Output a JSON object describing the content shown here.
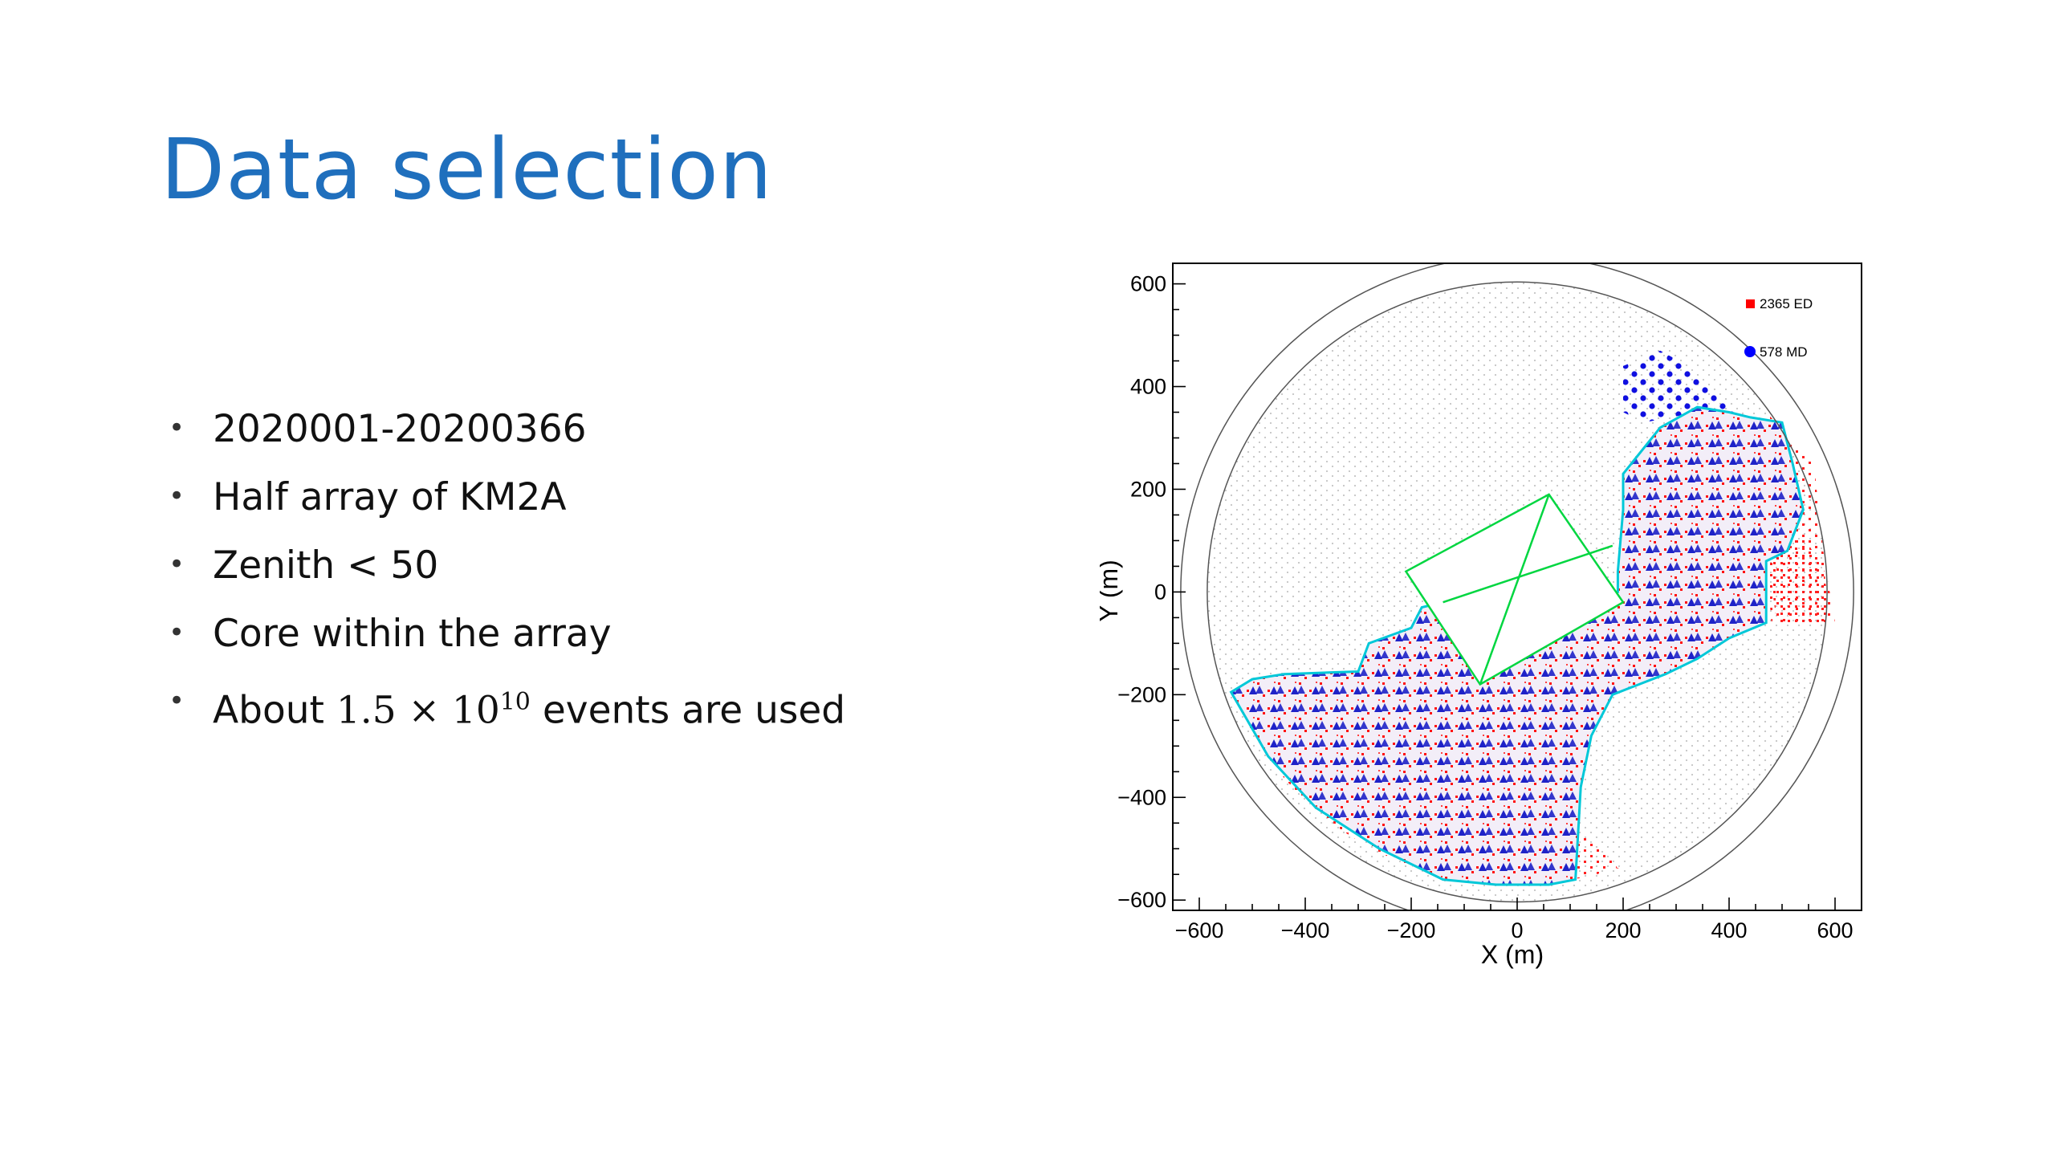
{
  "slide": {
    "title": "Data selection",
    "bullets": [
      {
        "text": "2020001-20200366"
      },
      {
        "text": "Half array of KM2A"
      },
      {
        "text": "Zenith < 50"
      },
      {
        "text": "Core within the array"
      },
      {
        "pre": "About ",
        "math_base": "1.5 × 10",
        "math_exp": "10",
        "post": " events are used"
      }
    ]
  },
  "chart_data": {
    "type": "scatter",
    "title": "",
    "xlabel": "X (m)",
    "ylabel": "Y (m)",
    "xlim": [
      -650,
      650
    ],
    "ylim": [
      -620,
      640
    ],
    "xticks": [
      "−600",
      "−400",
      "−200",
      "0",
      "200",
      "400",
      "600"
    ],
    "yticks": [
      "600",
      "400",
      "200",
      "0",
      "−200",
      "−400",
      "−600"
    ],
    "xtick_values": [
      -600,
      -400,
      -200,
      0,
      200,
      400,
      600
    ],
    "ytick_values": [
      600,
      400,
      200,
      0,
      -200,
      -400,
      -600
    ],
    "legend_position": "top-right",
    "grid": false,
    "series": [
      {
        "name": "2365 ED",
        "marker": "square",
        "color": "#ff0000",
        "count": 2365
      },
      {
        "name": "578 MD",
        "marker": "circle",
        "color": "#0000ff",
        "count": 578
      }
    ],
    "outer_circle_radius": 635,
    "inner_circle_radius": 585,
    "boundary_color": "#00c8d8",
    "wcda_color": "#00d640"
  }
}
